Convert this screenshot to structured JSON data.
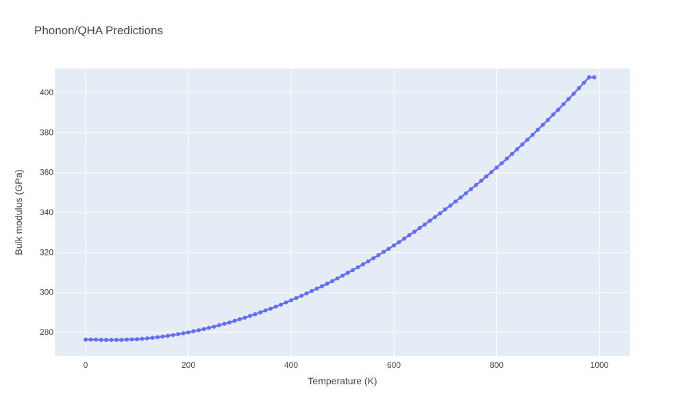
{
  "chart_data": {
    "type": "line",
    "title": "Phonon/QHA Predictions",
    "xlabel": "Temperature (K)",
    "ylabel": "Bulk modulus (GPa)",
    "xlim": [
      -60,
      1060
    ],
    "ylim": [
      268,
      412
    ],
    "x_ticks": [
      0,
      200,
      400,
      600,
      800,
      1000
    ],
    "y_ticks": [
      280,
      300,
      320,
      340,
      360,
      380,
      400
    ],
    "grid": true,
    "legend": "none",
    "colors": {
      "series": "#636efa",
      "plot_bg": "#e5ecf6",
      "text": "#444444"
    },
    "series": [
      {
        "mode": "lines+markers",
        "x": [
          0,
          10,
          20,
          30,
          40,
          50,
          60,
          70,
          80,
          90,
          100,
          110,
          120,
          130,
          140,
          150,
          160,
          170,
          180,
          190,
          200,
          210,
          220,
          230,
          240,
          250,
          260,
          270,
          280,
          290,
          300,
          310,
          320,
          330,
          340,
          350,
          360,
          370,
          380,
          390,
          400,
          410,
          420,
          430,
          440,
          450,
          460,
          470,
          480,
          490,
          500,
          510,
          520,
          530,
          540,
          550,
          560,
          570,
          580,
          590,
          600,
          610,
          620,
          630,
          640,
          650,
          660,
          670,
          680,
          690,
          700,
          710,
          720,
          730,
          740,
          750,
          760,
          770,
          780,
          790,
          800,
          810,
          820,
          830,
          840,
          850,
          860,
          870,
          880,
          890,
          900,
          910,
          920,
          930,
          940,
          950,
          960,
          970,
          980,
          990
        ],
        "y": [
          276.3,
          276.3,
          276.3,
          276.2,
          276.2,
          276.2,
          276.2,
          276.2,
          276.3,
          276.4,
          276.5,
          276.7,
          276.9,
          277.2,
          277.5,
          277.8,
          278.2,
          278.6,
          279.0,
          279.5,
          279.9,
          280.5,
          281.0,
          281.6,
          282.2,
          282.8,
          283.5,
          284.2,
          284.9,
          285.7,
          286.5,
          287.3,
          288.2,
          289.0,
          289.9,
          290.9,
          291.8,
          292.8,
          293.8,
          294.9,
          296.0,
          297.1,
          298.2,
          299.4,
          300.6,
          301.8,
          303.0,
          304.3,
          305.6,
          306.9,
          308.3,
          309.7,
          311.1,
          312.5,
          314.0,
          315.5,
          317.0,
          318.6,
          320.2,
          321.8,
          323.4,
          325.1,
          326.8,
          328.6,
          330.3,
          332.1,
          333.9,
          335.8,
          337.6,
          339.5,
          341.5,
          343.4,
          345.4,
          347.4,
          349.5,
          351.6,
          353.7,
          355.8,
          358.0,
          360.2,
          362.4,
          364.6,
          366.9,
          369.2,
          371.6,
          374.0,
          376.4,
          378.8,
          381.3,
          383.8,
          386.3,
          388.9,
          391.4,
          394.1,
          396.7,
          399.4,
          402.1,
          404.9,
          407.6,
          407.6
        ]
      }
    ]
  }
}
